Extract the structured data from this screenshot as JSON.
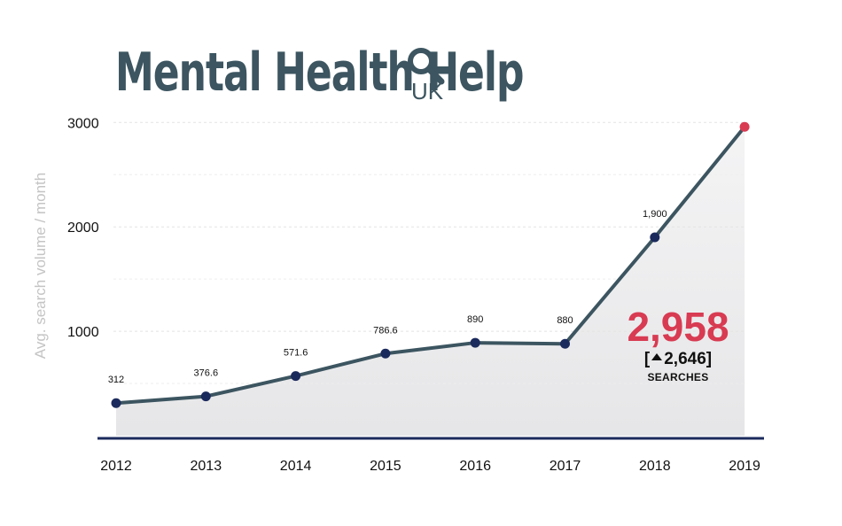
{
  "logo": {
    "title": "Mental Health Help",
    "subtitle": "UK",
    "icon": "magnifier-icon"
  },
  "colors": {
    "line": "#3c5560",
    "point": "#1b2a5c",
    "highlight": "#d83b52",
    "axis": "#1b2a5c",
    "area": "#e9e9eb"
  },
  "chart_data": {
    "type": "area",
    "x": [
      "2012",
      "2013",
      "2014",
      "2015",
      "2016",
      "2017",
      "2018",
      "2019"
    ],
    "values": [
      312,
      376.6,
      571.6,
      786.6,
      890,
      880,
      1900,
      2958
    ],
    "point_labels": [
      "312",
      "376.6",
      "571.6",
      "786.6",
      "890",
      "880",
      "1,900",
      ""
    ],
    "ylabel": "Avg. search volume / month",
    "xlabel": "",
    "yticks": [
      "1000",
      "2000",
      "3000"
    ],
    "ytick_values": [
      1000,
      2000,
      3000
    ],
    "ylim": [
      0,
      3000
    ],
    "grid": true,
    "highlight_last_point": true
  },
  "callout": {
    "value": "2,958",
    "delta": "2,646",
    "unit": "SEARCHES"
  }
}
